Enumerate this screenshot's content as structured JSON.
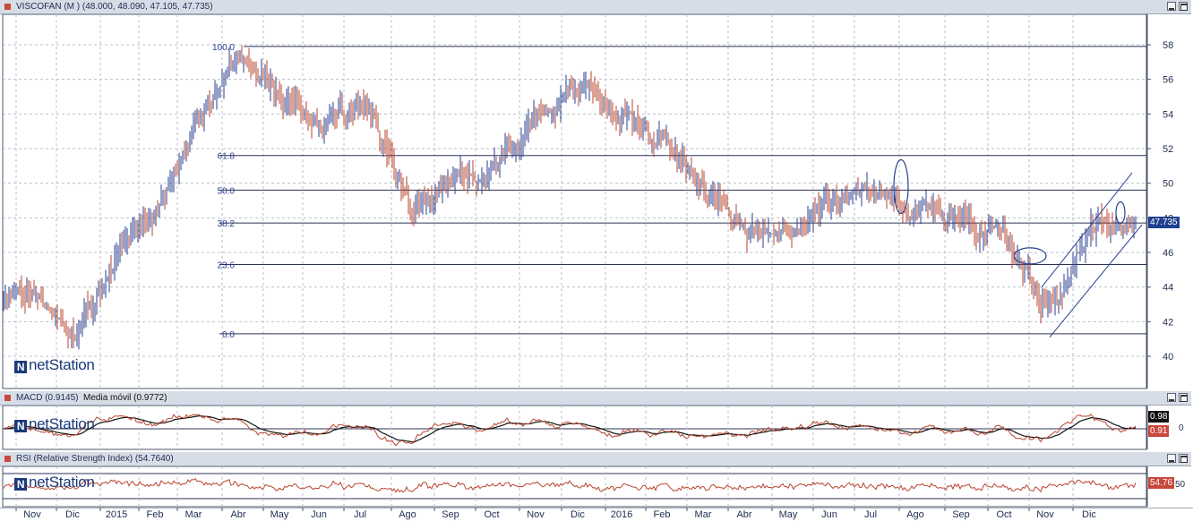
{
  "main_panel": {
    "title": "VISCOFAN (M ) (48.000, 48.090, 47.105, 47.735)",
    "last_price": "47.735",
    "y_ticks": [
      "58",
      "56",
      "54",
      "52",
      "50",
      "48",
      "46",
      "44",
      "42",
      "40"
    ],
    "fib_labels": [
      "100.0",
      "61.8",
      "50.0",
      "38.2",
      "23.6",
      "0.0"
    ],
    "logo": "netStation"
  },
  "macd_panel": {
    "title": "MACD (0.9145)",
    "signal_label": "Media móvil (0.9772)",
    "macd_tag": "0.91",
    "signal_tag": "0.98",
    "y_tick": "0",
    "logo": "netStation"
  },
  "rsi_panel": {
    "title": "RSI (Relative Strength Index) (54.7640)",
    "rsi_tag": "54.76",
    "y_tick": "50",
    "logo": "netStation"
  },
  "x_axis": {
    "labels": [
      "Nov",
      "Dic",
      "2015",
      "Feb",
      "Mar",
      "Abr",
      "May",
      "Jun",
      "Jul",
      "Ago",
      "Sep",
      "Oct",
      "Nov",
      "Dic",
      "2016",
      "Feb",
      "Mar",
      "Abr",
      "May",
      "Jun",
      "Jul",
      "Ago",
      "Sep",
      "Oct",
      "Nov",
      "Dic"
    ]
  },
  "colors": {
    "up_bar": "#2b3f8f",
    "down_bar": "#b8452e",
    "grid": "#b9c0cc",
    "axis": "#1f2d52",
    "header_bg": "#d7dde6"
  },
  "chart_data": {
    "type": "line",
    "title": "VISCOFAN (M ) (48.000, 48.090, 47.105, 47.735)",
    "x": [
      "Nov",
      "Dic",
      "2015",
      "Feb",
      "Mar",
      "Abr",
      "May",
      "Jun",
      "Jul",
      "Ago",
      "Sep",
      "Oct",
      "Nov",
      "Dic",
      "2016",
      "Feb",
      "Mar",
      "Abr",
      "May",
      "Jun",
      "Jul",
      "Ago",
      "Sep",
      "Oct",
      "Nov",
      "Dic"
    ],
    "series": [
      {
        "values": [
          43.5,
          41.5,
          46.5,
          48.5,
          53.5,
          57.5,
          54.5,
          53.0,
          55.0,
          48.0,
          50.0,
          51.0,
          54.0,
          55.5,
          53.5,
          52.0,
          50.0,
          47.0,
          47.5,
          49.0,
          49.5,
          48.5,
          47.5,
          46.5,
          42.5,
          48.0
        ]
      }
    ],
    "ylim": [
      39,
      59
    ],
    "y_ticks": [
      40,
      42,
      44,
      46,
      48,
      50,
      52,
      54,
      56,
      58
    ],
    "fibonacci_levels": {
      "100.0": 57.9,
      "61.8": 51.6,
      "50.0": 49.6,
      "38.2": 47.7,
      "23.6": 45.3,
      "0.0": 41.3
    },
    "grid": true
  }
}
